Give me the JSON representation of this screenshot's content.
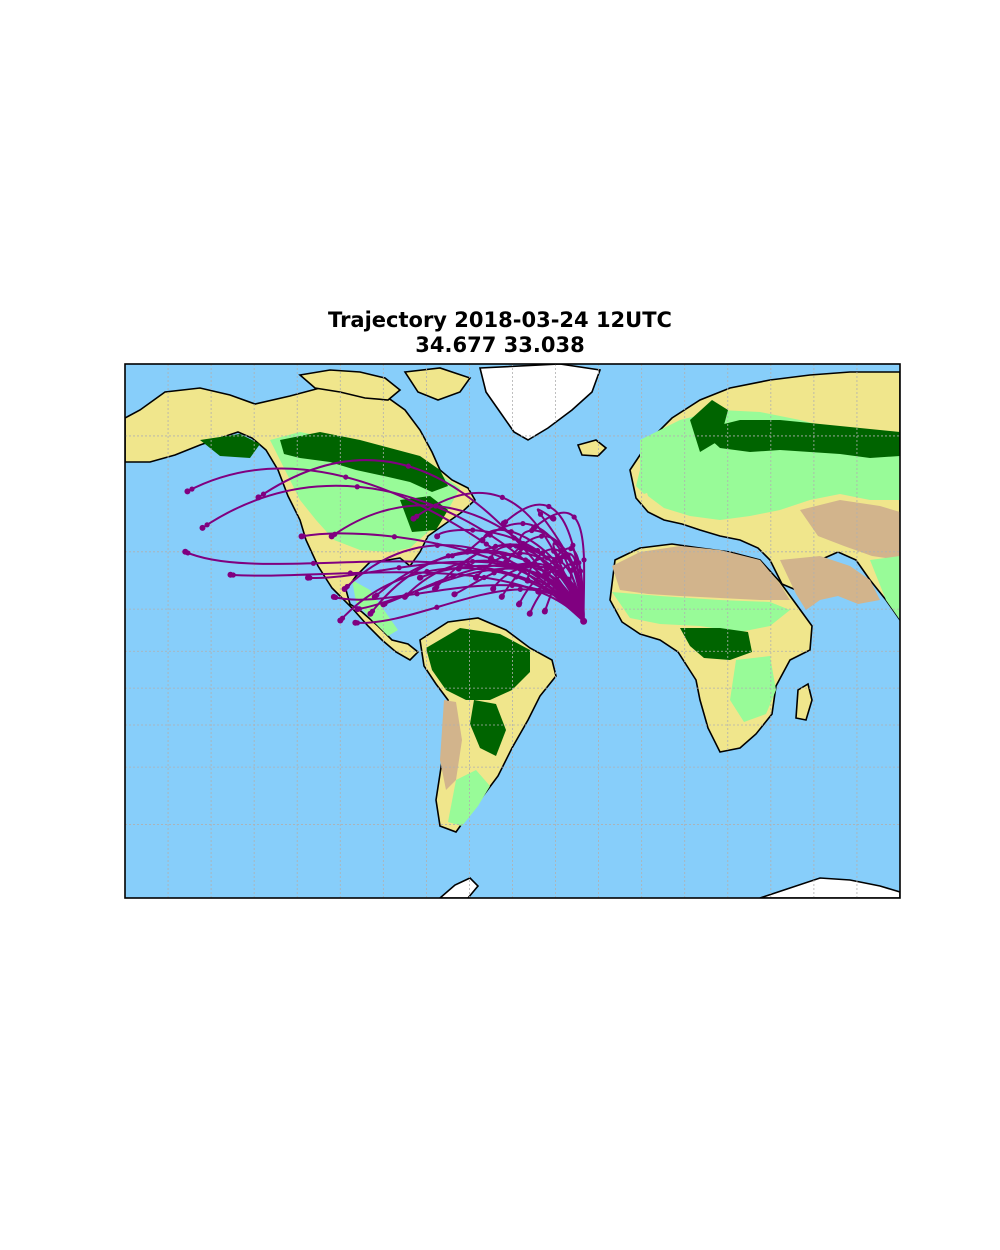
{
  "title_line1": "Trajectory 2018-03-24 12UTC",
  "title_line2": "34.677 33.038",
  "map": {
    "projection": "mercator",
    "lon_range": [
      -180,
      180
    ],
    "lat_range": [
      -75,
      85
    ],
    "graticule_step_deg": 20,
    "colors": {
      "ocean": "#87cefa",
      "grassland": "#98fb98",
      "forest": "#006400",
      "savanna": "#f0e68c",
      "desert": "#d2b48c",
      "ice": "#ffffff",
      "coastline": "#000000",
      "graticule": "#b0b0b0",
      "trajectory": "#800080"
    },
    "origin": {
      "lon": 33.038,
      "lat": 34.677
    },
    "trajectory_endpoints": [
      [
        -151,
        73
      ],
      [
        -131,
        53
      ],
      [
        -144,
        66
      ],
      [
        -152,
        60
      ],
      [
        -118,
        72
      ],
      [
        -98,
        64
      ],
      [
        -84,
        64
      ],
      [
        -95,
        52
      ],
      [
        -78,
        48
      ],
      [
        -83,
        45
      ],
      [
        -64,
        45
      ],
      [
        -72,
        40
      ],
      [
        -80,
        35
      ],
      [
        -73,
        34
      ],
      [
        -66,
        38
      ],
      [
        -60,
        42
      ],
      [
        -50,
        45
      ],
      [
        -43,
        52
      ],
      [
        -36,
        48
      ],
      [
        -27,
        46
      ],
      [
        -17,
        52
      ],
      [
        -9,
        48
      ],
      [
        -21,
        60
      ],
      [
        -35,
        64
      ],
      [
        -46,
        68
      ],
      [
        -14,
        63
      ],
      [
        -4,
        67
      ],
      [
        4,
        61
      ],
      [
        10,
        66
      ],
      [
        19,
        68
      ],
      [
        -3,
        57
      ],
      [
        7,
        51
      ],
      [
        16,
        55
      ],
      [
        22,
        58
      ],
      [
        12,
        47
      ],
      [
        -5,
        45
      ],
      [
        3,
        42
      ],
      [
        8,
        38
      ],
      [
        15,
        39
      ],
      [
        27,
        41
      ],
      [
        -25,
        55
      ],
      [
        -10,
        58
      ]
    ]
  }
}
